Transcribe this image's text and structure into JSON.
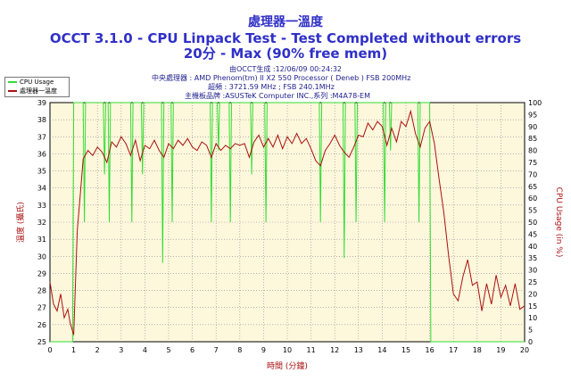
{
  "titles": {
    "line1": "處理器一溫度",
    "line2": "OCCT 3.1.0 - CPU Linpack Test - Test Completed without errors",
    "line3": "20分 - Max (90% free mem)"
  },
  "info": {
    "generated": "由OCCT生成 :12/06/09 00:24:32",
    "cpu": "中央處理器 : AMD Phenom(tm) II X2 550 Processor ( Deneb ) FSB 200MHz",
    "clock": "超頻 : 3721.59 MHz ; FSB 240.1MHz",
    "board": "主機板品牌 :ASUSTeK Computer INC.,系列 :M4A78-EM"
  },
  "colors": {
    "cpu": "#33dd33",
    "temp": "#aa1111",
    "plot_bg": "#fdf7dc",
    "grid": "#888888",
    "title": "#3030c8"
  },
  "chart_data": {
    "type": "line",
    "xlabel": "時間 (分鐘)",
    "ylabel_left": "溫度 (攝氏)",
    "ylabel_right": "CPU Usage (in %)",
    "xlim": [
      0,
      20
    ],
    "ylim_left": [
      25,
      39
    ],
    "ylim_right": [
      0,
      100
    ],
    "x_ticks": [
      "0",
      "1",
      "2",
      "3",
      "4",
      "5",
      "6",
      "7",
      "8",
      "9",
      "10",
      "11",
      "12",
      "13",
      "14",
      "15",
      "16",
      "17",
      "18",
      "19",
      "20"
    ],
    "y_left_ticks": [
      "25",
      "26",
      "27",
      "28",
      "29",
      "30",
      "31",
      "32",
      "33",
      "34",
      "35",
      "36",
      "37",
      "38",
      "39"
    ],
    "y_right_ticks": [
      "0",
      "5",
      "10",
      "15",
      "20",
      "25",
      "30",
      "35",
      "40",
      "45",
      "50",
      "55",
      "60",
      "65",
      "70",
      "75",
      "80",
      "85",
      "90",
      "95",
      "100"
    ],
    "grid": true,
    "legend": "top-left",
    "series": [
      {
        "name": "CPU Usage",
        "axis": "right",
        "points": [
          [
            0,
            0
          ],
          [
            0.95,
            0
          ],
          [
            1.0,
            100
          ],
          [
            1.05,
            100
          ],
          [
            1.4,
            100
          ],
          [
            1.45,
            50
          ],
          [
            1.5,
            100
          ],
          [
            2.25,
            100
          ],
          [
            2.3,
            70
          ],
          [
            2.35,
            100
          ],
          [
            2.45,
            100
          ],
          [
            2.5,
            50
          ],
          [
            2.55,
            100
          ],
          [
            3.4,
            100
          ],
          [
            3.45,
            50
          ],
          [
            3.5,
            100
          ],
          [
            3.85,
            100
          ],
          [
            3.9,
            70
          ],
          [
            3.95,
            100
          ],
          [
            4.7,
            100
          ],
          [
            4.75,
            33
          ],
          [
            4.8,
            100
          ],
          [
            5.1,
            100
          ],
          [
            5.15,
            50
          ],
          [
            5.2,
            100
          ],
          [
            6.75,
            100
          ],
          [
            6.8,
            50
          ],
          [
            6.85,
            100
          ],
          [
            7.05,
            100
          ],
          [
            7.1,
            80
          ],
          [
            7.15,
            100
          ],
          [
            7.55,
            100
          ],
          [
            7.6,
            50
          ],
          [
            7.65,
            100
          ],
          [
            8.45,
            100
          ],
          [
            8.5,
            70
          ],
          [
            8.55,
            100
          ],
          [
            9.05,
            100
          ],
          [
            9.1,
            50
          ],
          [
            9.15,
            100
          ],
          [
            11.35,
            100
          ],
          [
            11.4,
            50
          ],
          [
            11.45,
            100
          ],
          [
            12.35,
            100
          ],
          [
            12.4,
            35
          ],
          [
            12.45,
            100
          ],
          [
            12.85,
            100
          ],
          [
            12.9,
            50
          ],
          [
            12.95,
            100
          ],
          [
            14.05,
            100
          ],
          [
            14.1,
            50
          ],
          [
            14.15,
            100
          ],
          [
            14.3,
            100
          ],
          [
            14.35,
            80
          ],
          [
            14.4,
            100
          ],
          [
            15.5,
            100
          ],
          [
            15.55,
            50
          ],
          [
            15.6,
            100
          ],
          [
            16.0,
            100
          ],
          [
            16.05,
            0
          ],
          [
            20,
            0
          ]
        ]
      },
      {
        "name": "處理器一溫度",
        "axis": "left",
        "points": [
          [
            0,
            28.5
          ],
          [
            0.15,
            27.2
          ],
          [
            0.3,
            26.8
          ],
          [
            0.45,
            27.8
          ],
          [
            0.6,
            26.4
          ],
          [
            0.75,
            26.9
          ],
          [
            0.85,
            26.1
          ],
          [
            1.0,
            25.4
          ],
          [
            1.15,
            31.5
          ],
          [
            1.3,
            34
          ],
          [
            1.4,
            35.7
          ],
          [
            1.6,
            36.2
          ],
          [
            1.8,
            35.9
          ],
          [
            2.0,
            36.4
          ],
          [
            2.2,
            36.1
          ],
          [
            2.4,
            35.5
          ],
          [
            2.6,
            36.7
          ],
          [
            2.8,
            36.4
          ],
          [
            3.0,
            37
          ],
          [
            3.2,
            36.6
          ],
          [
            3.4,
            35.9
          ],
          [
            3.6,
            36.8
          ],
          [
            3.8,
            35.6
          ],
          [
            4.0,
            36.5
          ],
          [
            4.2,
            36.3
          ],
          [
            4.4,
            36.8
          ],
          [
            4.6,
            36.2
          ],
          [
            4.8,
            35.8
          ],
          [
            5.0,
            36.6
          ],
          [
            5.2,
            36.3
          ],
          [
            5.4,
            36.8
          ],
          [
            5.6,
            36.5
          ],
          [
            5.8,
            36.9
          ],
          [
            6.0,
            36.4
          ],
          [
            6.2,
            36.2
          ],
          [
            6.4,
            36.7
          ],
          [
            6.6,
            36.5
          ],
          [
            6.8,
            35.8
          ],
          [
            7.0,
            36.6
          ],
          [
            7.2,
            36.2
          ],
          [
            7.4,
            36.5
          ],
          [
            7.6,
            36.3
          ],
          [
            7.8,
            36.6
          ],
          [
            8.0,
            36.5
          ],
          [
            8.2,
            36.6
          ],
          [
            8.4,
            35.8
          ],
          [
            8.6,
            36.7
          ],
          [
            8.8,
            37.1
          ],
          [
            9.0,
            36.4
          ],
          [
            9.2,
            36.9
          ],
          [
            9.4,
            36.4
          ],
          [
            9.6,
            37.1
          ],
          [
            9.8,
            36.3
          ],
          [
            10.0,
            37
          ],
          [
            10.2,
            36.6
          ],
          [
            10.4,
            37.2
          ],
          [
            10.6,
            36.6
          ],
          [
            10.8,
            36.9
          ],
          [
            11.0,
            36.3
          ],
          [
            11.2,
            35.6
          ],
          [
            11.4,
            35.3
          ],
          [
            11.6,
            36.2
          ],
          [
            11.8,
            36.6
          ],
          [
            12.0,
            37.1
          ],
          [
            12.2,
            36.5
          ],
          [
            12.4,
            36.1
          ],
          [
            12.6,
            35.8
          ],
          [
            12.8,
            36.4
          ],
          [
            13.0,
            37.1
          ],
          [
            13.2,
            37
          ],
          [
            13.4,
            37.8
          ],
          [
            13.6,
            37.4
          ],
          [
            13.8,
            37.9
          ],
          [
            14.0,
            37.6
          ],
          [
            14.2,
            36.5
          ],
          [
            14.4,
            37.5
          ],
          [
            14.6,
            36.7
          ],
          [
            14.8,
            37.9
          ],
          [
            15.0,
            37.6
          ],
          [
            15.2,
            38.5
          ],
          [
            15.4,
            37.2
          ],
          [
            15.6,
            36.4
          ],
          [
            15.8,
            37.5
          ],
          [
            16.0,
            37.9
          ],
          [
            16.2,
            36.6
          ],
          [
            16.4,
            34.5
          ],
          [
            16.6,
            32.5
          ],
          [
            16.8,
            30
          ],
          [
            17.0,
            27.8
          ],
          [
            17.2,
            27.4
          ],
          [
            17.4,
            28.8
          ],
          [
            17.6,
            29.8
          ],
          [
            17.8,
            28.3
          ],
          [
            18.0,
            28.5
          ],
          [
            18.2,
            26.8
          ],
          [
            18.4,
            28.4
          ],
          [
            18.6,
            27.2
          ],
          [
            18.8,
            28.9
          ],
          [
            19.0,
            27.6
          ],
          [
            19.2,
            28.3
          ],
          [
            19.4,
            27.1
          ],
          [
            19.6,
            28.4
          ],
          [
            19.8,
            26.9
          ],
          [
            20.0,
            27.1
          ]
        ]
      }
    ]
  }
}
